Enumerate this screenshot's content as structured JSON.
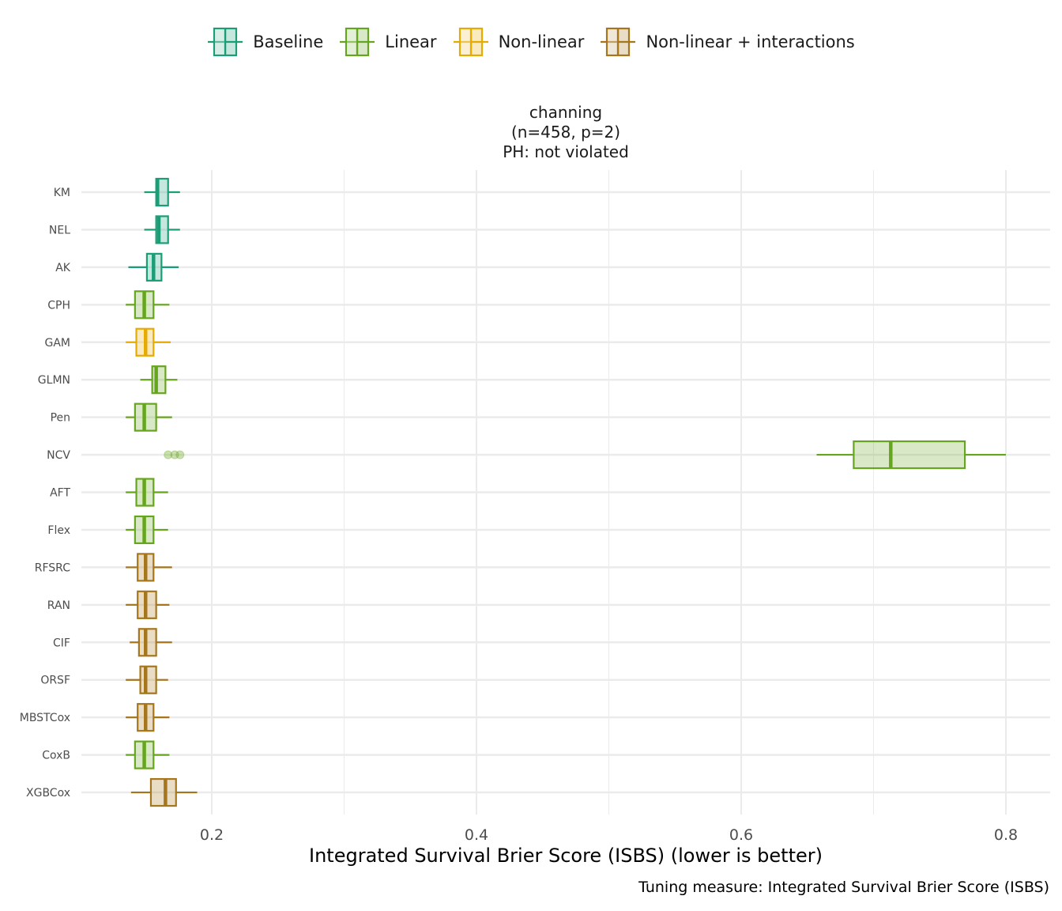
{
  "legend": [
    {
      "label": "Baseline",
      "color": "#1b9e77"
    },
    {
      "label": "Linear",
      "color": "#66a61e"
    },
    {
      "label": "Non-linear",
      "color": "#e6ab02"
    },
    {
      "label": "Non-linear + interactions",
      "color": "#a6761d"
    }
  ],
  "strip": {
    "line1": "channing",
    "line2": "(n=458, p=2)",
    "line3": "PH: not violated"
  },
  "caption": "Tuning measure: Integrated Survival Brier Score (ISBS)",
  "chart_data": {
    "type": "boxplot",
    "orientation": "horizontal",
    "title": "channing (n=458, p=2) PH: not violated",
    "xlabel": "Integrated Survival Brier Score (ISBS) (lower is better)",
    "ylabel": "",
    "xlim": [
      0.1015,
      0.833
    ],
    "xticks": [
      0.2,
      0.4,
      0.6,
      0.8
    ],
    "xtick_labels": [
      "0.2",
      "0.4",
      "0.6",
      "0.8"
    ],
    "grid": true,
    "legend_position": "top",
    "series": [
      {
        "name": "KM",
        "group": "Baseline",
        "whislo": 0.149,
        "q1": 0.158,
        "med": 0.159,
        "q3": 0.167,
        "whishi": 0.176,
        "outliers": []
      },
      {
        "name": "NEL",
        "group": "Baseline",
        "whislo": 0.149,
        "q1": 0.158,
        "med": 0.16,
        "q3": 0.167,
        "whishi": 0.176,
        "outliers": []
      },
      {
        "name": "AK",
        "group": "Baseline",
        "whislo": 0.137,
        "q1": 0.151,
        "med": 0.156,
        "q3": 0.162,
        "whishi": 0.175,
        "outliers": []
      },
      {
        "name": "CPH",
        "group": "Linear",
        "whislo": 0.135,
        "q1": 0.142,
        "med": 0.149,
        "q3": 0.156,
        "whishi": 0.168,
        "outliers": []
      },
      {
        "name": "GAM",
        "group": "Non-linear",
        "whislo": 0.135,
        "q1": 0.143,
        "med": 0.15,
        "q3": 0.156,
        "whishi": 0.169,
        "outliers": []
      },
      {
        "name": "GLMN",
        "group": "Linear",
        "whislo": 0.146,
        "q1": 0.155,
        "med": 0.158,
        "q3": 0.165,
        "whishi": 0.174,
        "outliers": []
      },
      {
        "name": "Pen",
        "group": "Linear",
        "whislo": 0.135,
        "q1": 0.142,
        "med": 0.149,
        "q3": 0.158,
        "whishi": 0.17,
        "outliers": []
      },
      {
        "name": "NCV",
        "group": "Linear",
        "whislo": 0.657,
        "q1": 0.685,
        "med": 0.713,
        "q3": 0.769,
        "whishi": 0.8,
        "outliers": [
          0.167,
          0.172,
          0.176
        ]
      },
      {
        "name": "AFT",
        "group": "Linear",
        "whislo": 0.135,
        "q1": 0.143,
        "med": 0.149,
        "q3": 0.156,
        "whishi": 0.167,
        "outliers": []
      },
      {
        "name": "Flex",
        "group": "Linear",
        "whislo": 0.135,
        "q1": 0.142,
        "med": 0.149,
        "q3": 0.156,
        "whishi": 0.167,
        "outliers": []
      },
      {
        "name": "RFSRC",
        "group": "Non-linear + interactions",
        "whislo": 0.135,
        "q1": 0.144,
        "med": 0.15,
        "q3": 0.156,
        "whishi": 0.17,
        "outliers": []
      },
      {
        "name": "RAN",
        "group": "Non-linear + interactions",
        "whislo": 0.135,
        "q1": 0.144,
        "med": 0.15,
        "q3": 0.158,
        "whishi": 0.168,
        "outliers": []
      },
      {
        "name": "CIF",
        "group": "Non-linear + interactions",
        "whislo": 0.138,
        "q1": 0.145,
        "med": 0.15,
        "q3": 0.158,
        "whishi": 0.17,
        "outliers": []
      },
      {
        "name": "ORSF",
        "group": "Non-linear + interactions",
        "whislo": 0.135,
        "q1": 0.146,
        "med": 0.15,
        "q3": 0.158,
        "whishi": 0.167,
        "outliers": []
      },
      {
        "name": "MBSTCox",
        "group": "Non-linear + interactions",
        "whislo": 0.135,
        "q1": 0.144,
        "med": 0.15,
        "q3": 0.156,
        "whishi": 0.168,
        "outliers": []
      },
      {
        "name": "CoxB",
        "group": "Linear",
        "whislo": 0.135,
        "q1": 0.142,
        "med": 0.149,
        "q3": 0.156,
        "whishi": 0.168,
        "outliers": []
      },
      {
        "name": "XGBCox",
        "group": "Non-linear + interactions",
        "whislo": 0.139,
        "q1": 0.154,
        "med": 0.165,
        "q3": 0.173,
        "whishi": 0.189,
        "outliers": []
      }
    ]
  }
}
